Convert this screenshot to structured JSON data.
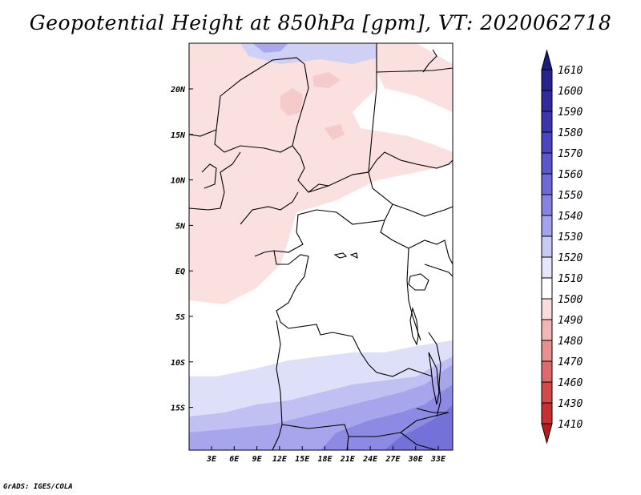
{
  "title": "Geopotential Height at 850hPa [gpm], VT: 2020062718",
  "credit": "GrADS: IGES/COLA",
  "map": {
    "x_ticks": [
      "3E",
      "6E",
      "9E",
      "12E",
      "15E",
      "18E",
      "21E",
      "24E",
      "27E",
      "30E",
      "33E"
    ],
    "y_ticks": [
      "20N",
      "15N",
      "10N",
      "5N",
      "EQ",
      "5S",
      "10S",
      "15S"
    ]
  },
  "colorbar": {
    "levels": [
      "1610",
      "1600",
      "1590",
      "1580",
      "1570",
      "1560",
      "1550",
      "1540",
      "1530",
      "1520",
      "1510",
      "1500",
      "1490",
      "1480",
      "1470",
      "1460",
      "1430",
      "1410"
    ],
    "colors": [
      "#1a1a80",
      "#26238f",
      "#2f2a9e",
      "#3b35b0",
      "#4a46c2",
      "#5a57cc",
      "#6c6ad6",
      "#8684e0",
      "#a3a2ec",
      "#c9c9f5",
      "#e6e6fb",
      "#ffffff",
      "#fbdcdc",
      "#f3b6b6",
      "#e89090",
      "#de6b6b",
      "#d24a4a",
      "#c73030",
      "#b81c1c"
    ],
    "top_color": "#1a1a80",
    "bottom_color": "#b81c1c"
  }
}
